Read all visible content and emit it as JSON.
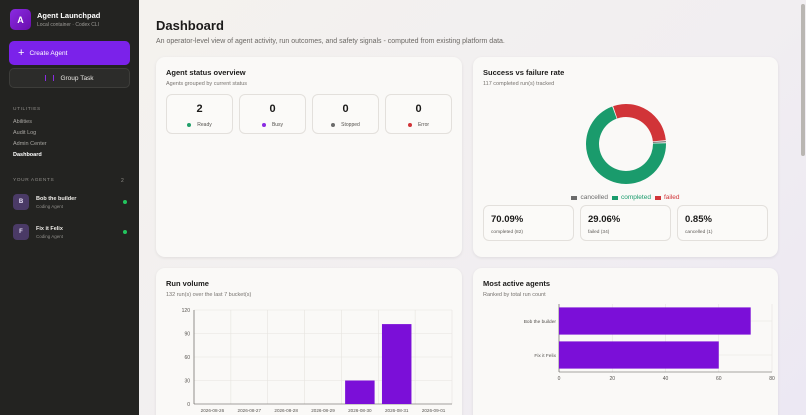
{
  "sidebar": {
    "logo_letter": "A",
    "app_title": "Agent Launchpad",
    "app_subtitle": "Local container · Codex CLI",
    "create_agent_label": "Create Agent",
    "group_task_label": "Group Task",
    "utilities_label": "UTILITIES",
    "nav_items": [
      {
        "label": "Abilities"
      },
      {
        "label": "Audit Log"
      },
      {
        "label": "Admin Center"
      },
      {
        "label": "Dashboard"
      }
    ],
    "your_agents_label": "YOUR AGENTS",
    "agents_count": "2",
    "agents": [
      {
        "initial": "B",
        "name": "Bob the builder",
        "role": "Coding Agent"
      },
      {
        "initial": "F",
        "name": "Fix it Felix",
        "role": "Coding Agent"
      }
    ]
  },
  "header": {
    "title": "Dashboard",
    "subtitle": "An operator-level view of agent activity, run outcomes, and safety signals - computed from existing platform data."
  },
  "status_card": {
    "title": "Agent status overview",
    "subtitle": "Agents grouped by current status",
    "stats": [
      {
        "value": "2",
        "label": "Ready",
        "color": "#22a06b"
      },
      {
        "value": "0",
        "label": "Busy",
        "color": "#8a2be2"
      },
      {
        "value": "0",
        "label": "Stopped",
        "color": "#6b6b6b"
      },
      {
        "value": "0",
        "label": "Error",
        "color": "#d13438"
      }
    ]
  },
  "success_card": {
    "title": "Success vs failure rate",
    "subtitle": "117 completed run(s) tracked",
    "legend": [
      {
        "label": "cancelled",
        "color": "#6b6b6b"
      },
      {
        "label": "completed",
        "color": "#1a9b6c"
      },
      {
        "label": "failed",
        "color": "#d13438"
      }
    ],
    "rates": [
      {
        "pct": "70.09%",
        "label": "completed (82)"
      },
      {
        "pct": "29.06%",
        "label": "failed (34)"
      },
      {
        "pct": "0.85%",
        "label": "cancelled (1)"
      }
    ]
  },
  "run_volume_card": {
    "title": "Run volume",
    "subtitle": "132 run(s) over the last 7 bucket(s)"
  },
  "active_agents_card": {
    "title": "Most active agents",
    "subtitle": "Ranked by total run count"
  },
  "chart_data": [
    {
      "type": "pie",
      "categories": [
        "completed",
        "failed",
        "cancelled"
      ],
      "values": [
        82,
        34,
        1
      ],
      "colors": [
        "#1a9b6c",
        "#d13438",
        "#6b6b6b"
      ],
      "title": "Success vs failure rate"
    },
    {
      "type": "bar",
      "title": "Run volume",
      "categories": [
        "2026-08-26",
        "2026-08-27",
        "2026-08-28",
        "2026-08-29",
        "2026-08-30",
        "2026-08-31",
        "2026-09-01"
      ],
      "values": [
        0,
        0,
        0,
        0,
        30,
        102,
        0
      ],
      "yticks": [
        0,
        30,
        60,
        90,
        120
      ],
      "ylim": [
        0,
        120
      ],
      "color": "#7b0fd8",
      "grid": true
    },
    {
      "type": "bar",
      "orientation": "horizontal",
      "title": "Most active agents",
      "categories": [
        "Bob the builder",
        "Fix it Felix"
      ],
      "values": [
        72,
        60
      ],
      "xticks": [
        0,
        20,
        40,
        60,
        80
      ],
      "xlim": [
        0,
        80
      ],
      "color": "#7b0fd8",
      "grid": true
    }
  ]
}
